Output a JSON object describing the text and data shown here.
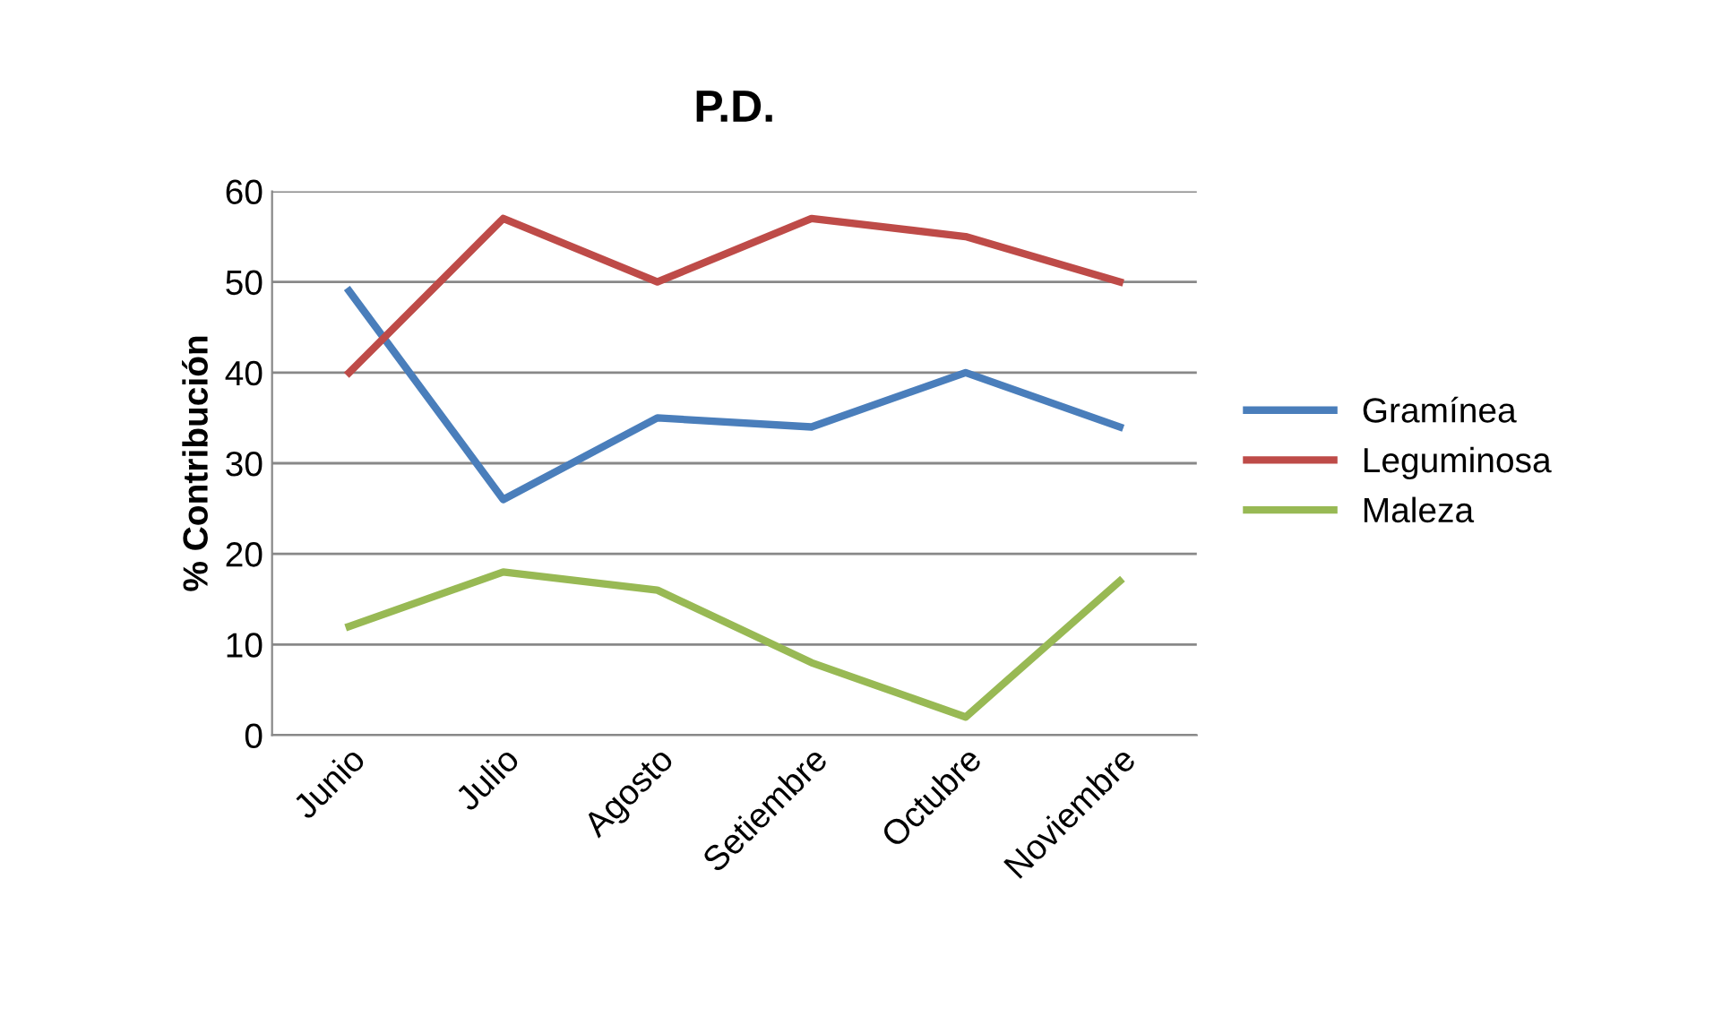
{
  "chart_data": {
    "type": "line",
    "title": "P.D.",
    "ylabel": "% Contribución",
    "categories": [
      "Junio",
      "Julio",
      "Agosto",
      "Setiembre",
      "Octubre",
      "Noviembre"
    ],
    "series": [
      {
        "name": "Gramínea",
        "color": "#4a7ebb",
        "values": [
          49,
          26,
          35,
          34,
          40,
          34
        ]
      },
      {
        "name": "Leguminosa",
        "color": "#be4b48",
        "values": [
          40,
          57,
          50,
          57,
          55,
          50
        ]
      },
      {
        "name": "Maleza",
        "color": "#98b954",
        "values": [
          12,
          18,
          16,
          8,
          2,
          17
        ]
      }
    ],
    "ylim": [
      0,
      60
    ],
    "yticks": [
      0,
      10,
      20,
      30,
      40,
      50,
      60
    ],
    "grid": "y",
    "legend": "right",
    "marker": "none",
    "line_style": "solid"
  }
}
